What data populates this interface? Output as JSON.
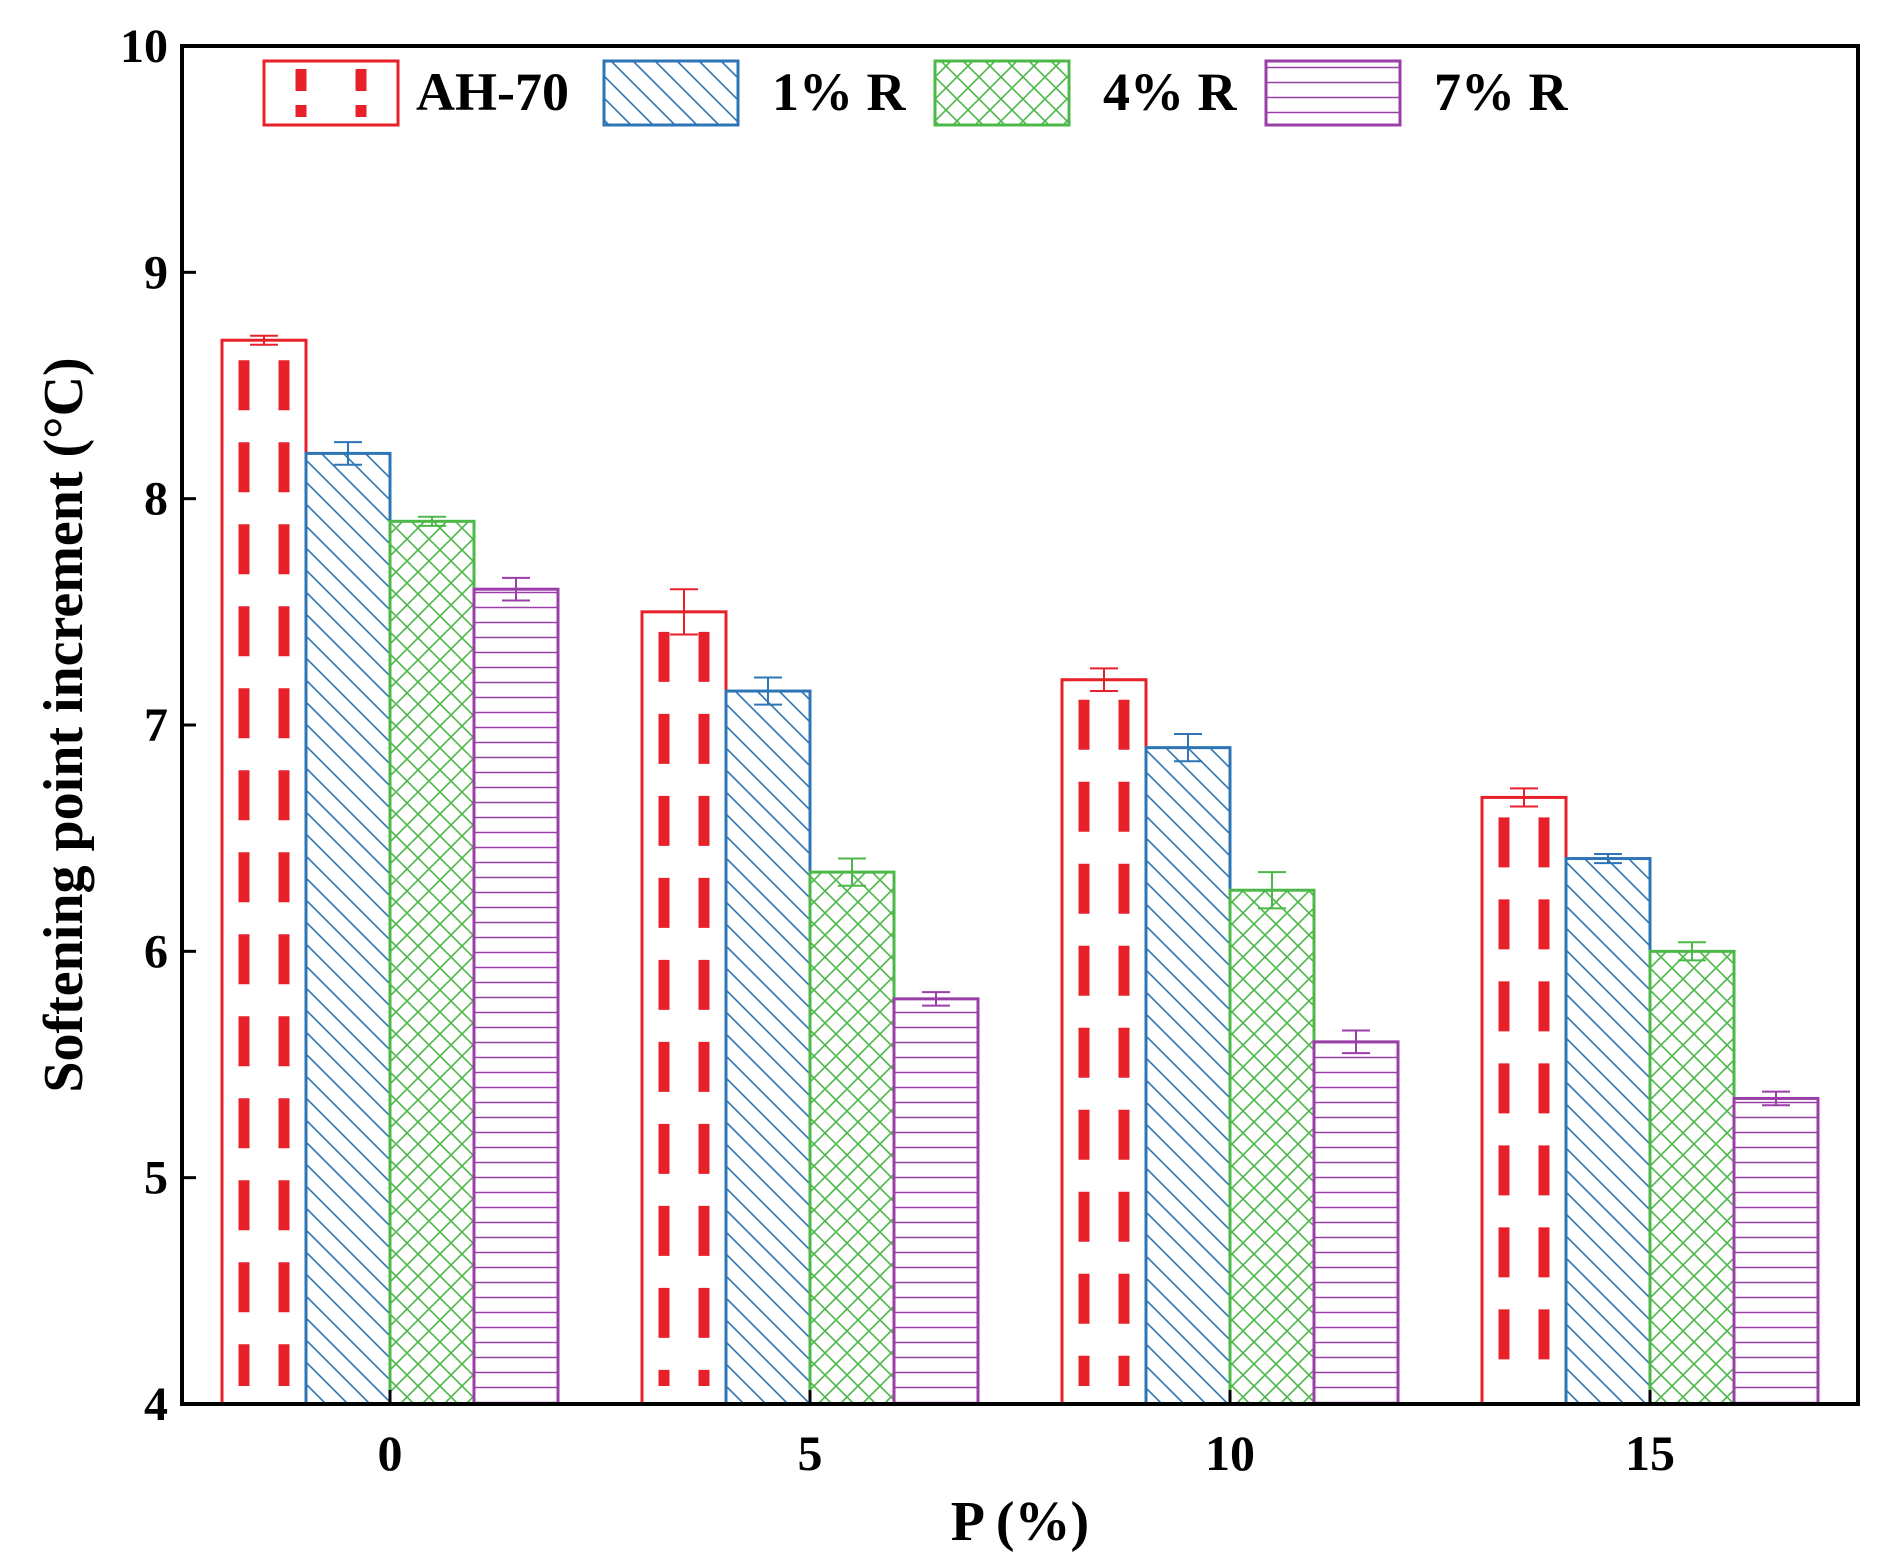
{
  "chart_data": {
    "type": "bar",
    "title": "",
    "xlabel": "P (%)",
    "ylabel": "Softening point increment (°C)",
    "categories": [
      "0",
      "5",
      "10",
      "15"
    ],
    "ylim": [
      4,
      10
    ],
    "yticks": [
      "4",
      "5",
      "6",
      "7",
      "8",
      "9",
      "10"
    ],
    "legend_position": "top",
    "series": [
      {
        "name": "AH-70",
        "color": "#e8202a",
        "pattern": "dashed-vertical",
        "values": [
          8.7,
          7.5,
          7.2,
          6.68
        ],
        "errors": [
          0.02,
          0.1,
          0.05,
          0.04
        ]
      },
      {
        "name": "1% R",
        "color": "#2e75b6",
        "pattern": "diagonal",
        "values": [
          8.2,
          7.15,
          6.9,
          6.41
        ],
        "errors": [
          0.05,
          0.06,
          0.06,
          0.02
        ]
      },
      {
        "name": "4% R",
        "color": "#4cb848",
        "pattern": "crosshatch",
        "values": [
          7.9,
          6.35,
          6.27,
          6.0
        ],
        "errors": [
          0.02,
          0.06,
          0.08,
          0.04
        ]
      },
      {
        "name": "7% R",
        "color": "#9b3fa8",
        "pattern": "horizontal",
        "values": [
          7.6,
          5.79,
          5.6,
          5.35
        ],
        "errors": [
          0.05,
          0.03,
          0.05,
          0.03
        ]
      }
    ]
  }
}
